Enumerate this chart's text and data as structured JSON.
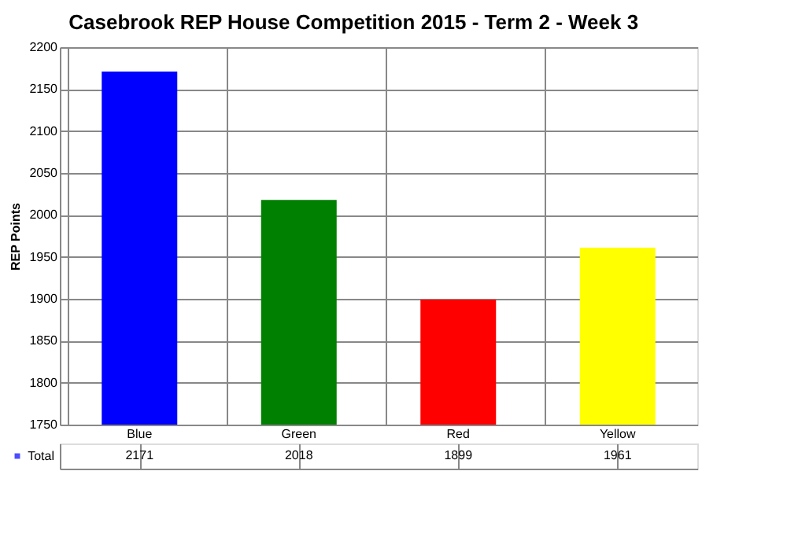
{
  "chart_data": {
    "type": "bar",
    "title": "Casebrook REP House Competition 2015 - Term 2 - Week 3",
    "ylabel": "REP Points",
    "categories": [
      "Blue",
      "Green",
      "Red",
      "Yellow"
    ],
    "series": [
      {
        "name": "Total",
        "colors": [
          "#0000ff",
          "#008000",
          "#ff0000",
          "#ffff00"
        ],
        "values": [
          2171,
          2018,
          1899,
          1961
        ]
      }
    ],
    "ylim": [
      1750,
      2200
    ],
    "yticks": [
      1750,
      1800,
      1850,
      1900,
      1950,
      2000,
      2050,
      2100,
      2150,
      2200
    ],
    "grid": "y",
    "data_labels": true
  }
}
